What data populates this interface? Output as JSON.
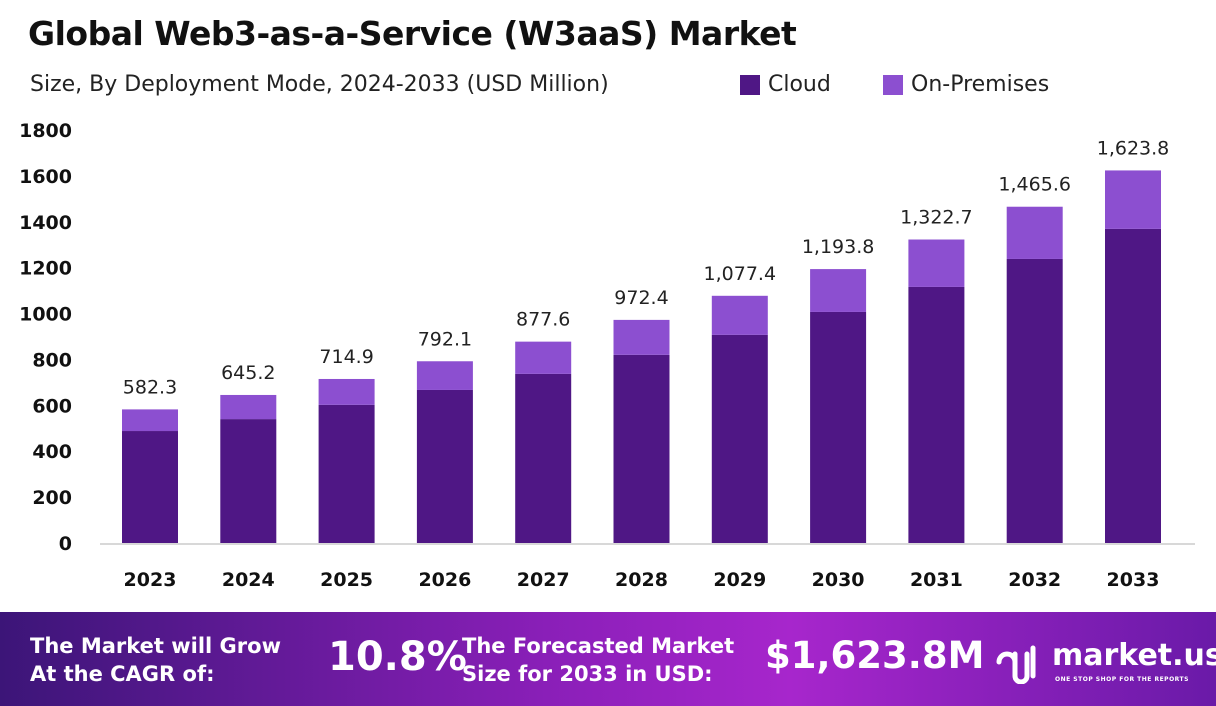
{
  "title": "Global Web3-as-a-Service (W3aaS) Market",
  "subtitle": "Size, By Deployment Mode, 2024-2033 (USD Million)",
  "chart_data": {
    "type": "bar",
    "stacked": true,
    "categories": [
      "2023",
      "2024",
      "2025",
      "2026",
      "2027",
      "2028",
      "2029",
      "2030",
      "2031",
      "2032",
      "2033"
    ],
    "series": [
      {
        "name": "Cloud",
        "color": "#4f1785",
        "values": [
          488,
          540,
          602,
          667,
          737,
          820,
          907,
          1007,
          1116,
          1238,
          1369
        ]
      },
      {
        "name": "On-Premises",
        "color": "#8c4fd0",
        "values": [
          94.3,
          105.2,
          112.9,
          125.1,
          140.6,
          152.4,
          170.4,
          186.8,
          206.7,
          227.6,
          254.8
        ]
      }
    ],
    "totals": [
      582.3,
      645.2,
      714.9,
      792.1,
      877.6,
      972.4,
      1077.4,
      1193.8,
      1322.7,
      1465.6,
      1623.8
    ],
    "total_labels": [
      "582.3",
      "645.2",
      "714.9",
      "792.1",
      "877.6",
      "972.4",
      "1,077.4",
      "1,193.8",
      "1,322.7",
      "1,465.6",
      "1,623.8"
    ],
    "yticks": [
      "0",
      "200",
      "400",
      "600",
      "800",
      "1000",
      "1200",
      "1400",
      "1600",
      "1800"
    ],
    "ylim": [
      0,
      1800
    ],
    "grid": false,
    "legend_position": "top-right"
  },
  "footer": {
    "cagr_label_1": "The Market will Grow",
    "cagr_label_2": "At the CAGR of:",
    "cagr_value": "10.8%",
    "forecast_label_1": "The Forecasted Market",
    "forecast_label_2": "Size for 2033 in USD:",
    "forecast_value": "$1,623.8M",
    "brand": "market.us",
    "brand_tagline": "ONE STOP SHOP FOR THE REPORTS"
  }
}
